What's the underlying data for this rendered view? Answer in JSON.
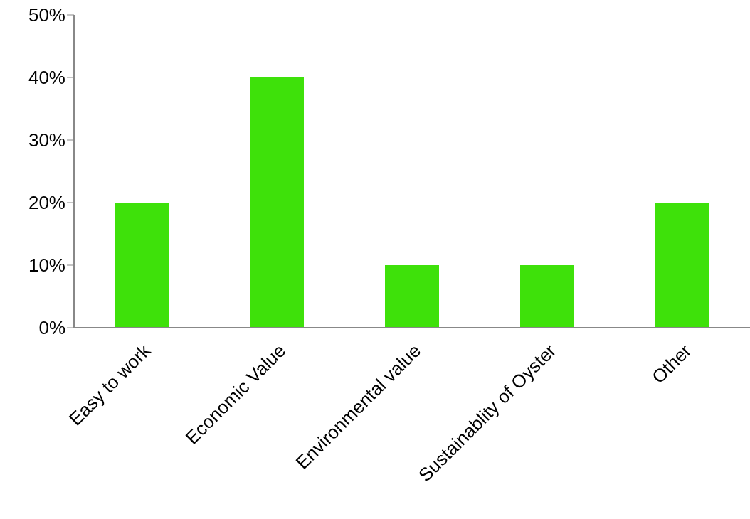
{
  "chart_data": {
    "type": "bar",
    "categories": [
      "Easy to work",
      "Economic Value",
      "Environmental value",
      "Sustainablity of Oyster",
      "Other"
    ],
    "values": [
      20,
      40,
      10,
      10,
      20
    ],
    "color": "#3ee10a",
    "ylim": [
      0,
      50
    ],
    "yticks": [
      {
        "value": 0,
        "label": "0%"
      },
      {
        "value": 10,
        "label": "10%"
      },
      {
        "value": 20,
        "label": "20%"
      },
      {
        "value": 30,
        "label": "30%"
      },
      {
        "value": 40,
        "label": "40%"
      },
      {
        "value": 50,
        "label": "50%"
      }
    ],
    "grid": false,
    "legend": false
  }
}
